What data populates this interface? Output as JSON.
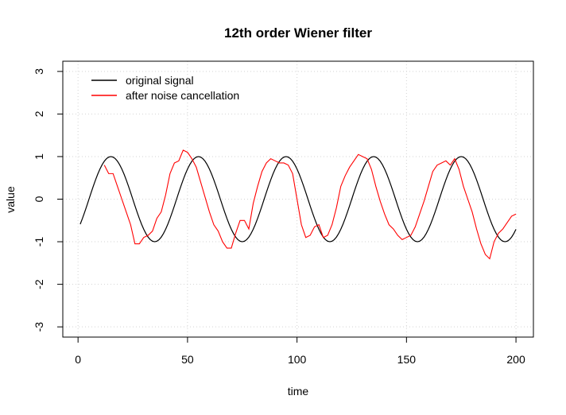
{
  "chart_data": {
    "type": "line",
    "title": "12th order Wiener filter",
    "xlabel": "time",
    "ylabel": "value",
    "xlim": [
      1,
      200
    ],
    "ylim": [
      -3,
      3
    ],
    "x_ticks": [
      0,
      50,
      100,
      150,
      200
    ],
    "y_ticks": [
      -3,
      -2,
      -1,
      0,
      1,
      2,
      3
    ],
    "grid": true,
    "legend_position": "top-left",
    "series": [
      {
        "name": "original signal",
        "color": "#000000",
        "function": "sin(2*pi*(t-5)/40)",
        "x_range": [
          1,
          200
        ]
      },
      {
        "name": "after noise cancellation",
        "color": "#ff0000",
        "x": [
          12,
          14,
          16,
          18,
          20,
          22,
          24,
          26,
          28,
          30,
          32,
          34,
          36,
          38,
          40,
          42,
          44,
          46,
          48,
          50,
          52,
          54,
          56,
          58,
          60,
          62,
          64,
          66,
          68,
          70,
          72,
          74,
          76,
          78,
          80,
          82,
          84,
          86,
          88,
          90,
          92,
          94,
          96,
          98,
          100,
          102,
          104,
          106,
          108,
          110,
          112,
          114,
          116,
          118,
          120,
          122,
          124,
          126,
          128,
          130,
          132,
          134,
          136,
          138,
          140,
          142,
          144,
          146,
          148,
          150,
          152,
          154,
          156,
          158,
          160,
          162,
          164,
          166,
          168,
          170,
          172,
          174,
          176,
          178,
          180,
          182,
          184,
          186,
          188,
          190,
          192,
          194,
          196,
          198,
          200
        ],
        "y": [
          0.8,
          0.6,
          0.6,
          0.3,
          0.0,
          -0.3,
          -0.6,
          -1.05,
          -1.05,
          -0.9,
          -0.85,
          -0.75,
          -0.45,
          -0.3,
          0.1,
          0.6,
          0.85,
          0.9,
          1.15,
          1.1,
          0.95,
          0.75,
          0.4,
          0.05,
          -0.3,
          -0.6,
          -0.75,
          -1.0,
          -1.15,
          -1.15,
          -0.8,
          -0.5,
          -0.5,
          -0.7,
          -0.1,
          0.3,
          0.65,
          0.85,
          0.95,
          0.9,
          0.85,
          0.85,
          0.8,
          0.6,
          0.0,
          -0.6,
          -0.9,
          -0.85,
          -0.65,
          -0.6,
          -0.9,
          -0.85,
          -0.6,
          -0.2,
          0.3,
          0.55,
          0.75,
          0.9,
          1.05,
          1.0,
          0.95,
          0.7,
          0.3,
          -0.05,
          -0.35,
          -0.6,
          -0.7,
          -0.85,
          -0.95,
          -0.9,
          -0.85,
          -0.65,
          -0.35,
          -0.05,
          0.3,
          0.65,
          0.8,
          0.85,
          0.9,
          0.8,
          0.95,
          0.7,
          0.3,
          0.0,
          -0.3,
          -0.7,
          -1.05,
          -1.3,
          -1.4,
          -1.0,
          -0.8,
          -0.7,
          -0.55,
          -0.4,
          -0.35
        ]
      }
    ]
  }
}
